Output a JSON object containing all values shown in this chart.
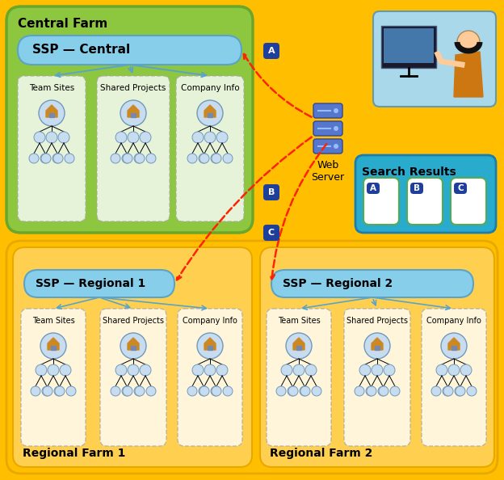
{
  "bg_outer": "#FFBF00",
  "green_farm_color": "#8DC63F",
  "green_farm_border": "#6AA629",
  "orange_farm_color": "#FFBF00",
  "orange_farm_border": "#E8A800",
  "ssp_box_color": "#87CEEB",
  "ssp_box_border": "#5BA4C8",
  "dashed_arrow_color": "#FF2200",
  "solid_arrow_color": "#5BA4C8",
  "label_bg_color": "#1F3F9A",
  "search_results_bg": "#29ABCE",
  "search_results_border": "#1A7DAE",
  "person_bg": "#A0CCE8",
  "central_farm_title": "Central Farm",
  "regional1_title": "Regional Farm 1",
  "regional2_title": "Regional Farm 2",
  "ssp_central_label": "SSP — Central",
  "ssp_regional1_label": "SSP — Regional 1",
  "ssp_regional2_label": "SSP — Regional 2",
  "search_results_title": "Search Results",
  "web_server_label": "Web\nServer",
  "site_labels": [
    "Team Sites",
    "Shared Projects",
    "Company Info"
  ],
  "step_labels": [
    "A",
    "B",
    "C"
  ]
}
